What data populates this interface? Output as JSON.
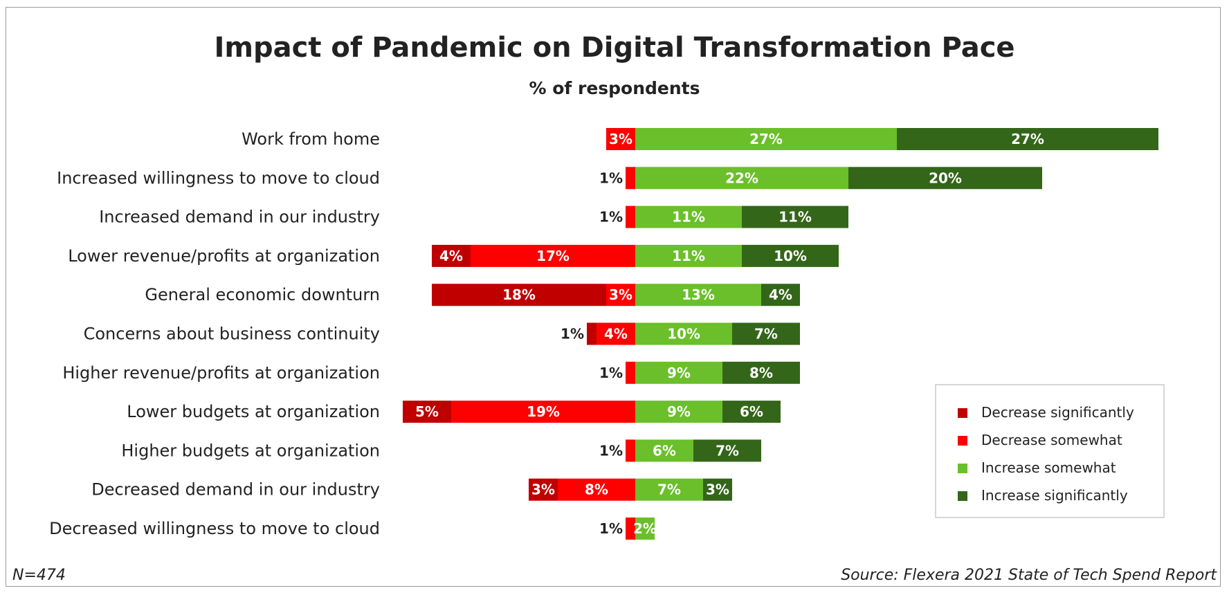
{
  "chart_data": {
    "type": "bar",
    "orientation": "horizontal",
    "stacked": "diverging",
    "title": "Impact of Pandemic on Digital Transformation Pace",
    "subtitle": "% of respondents",
    "categories": [
      "Work from home",
      "Increased willingness to move to cloud",
      "Increased demand in our industry",
      "Lower revenue/profits at organization",
      "General economic downturn",
      "Concerns about business continuity",
      "Higher revenue/profits at organization",
      "Lower budgets at organization",
      "Higher budgets at organization",
      "Decreased demand in our industry",
      "Decreased willingness to move to cloud"
    ],
    "series": [
      {
        "name": "Decrease significantly",
        "color": "#c00000",
        "side": "negative",
        "values": [
          0,
          0,
          0,
          4,
          18,
          1,
          0,
          5,
          0,
          3,
          0
        ]
      },
      {
        "name": "Decrease somewhat",
        "color": "#ff0000",
        "side": "negative",
        "values": [
          3,
          1,
          1,
          17,
          3,
          4,
          1,
          19,
          1,
          8,
          1
        ]
      },
      {
        "name": "Increase somewhat",
        "color": "#6abf2a",
        "side": "positive",
        "values": [
          27,
          22,
          11,
          11,
          13,
          10,
          9,
          9,
          6,
          7,
          2
        ]
      },
      {
        "name": "Increase significantly",
        "color": "#336619",
        "side": "positive",
        "values": [
          27,
          20,
          11,
          10,
          4,
          7,
          8,
          6,
          7,
          3,
          0
        ]
      }
    ],
    "data_label_format": "{v}%",
    "legend_position": "right",
    "grid": false,
    "n_label": "N=474",
    "source": "Source: Flexera 2021 State of Tech Spend Report"
  }
}
